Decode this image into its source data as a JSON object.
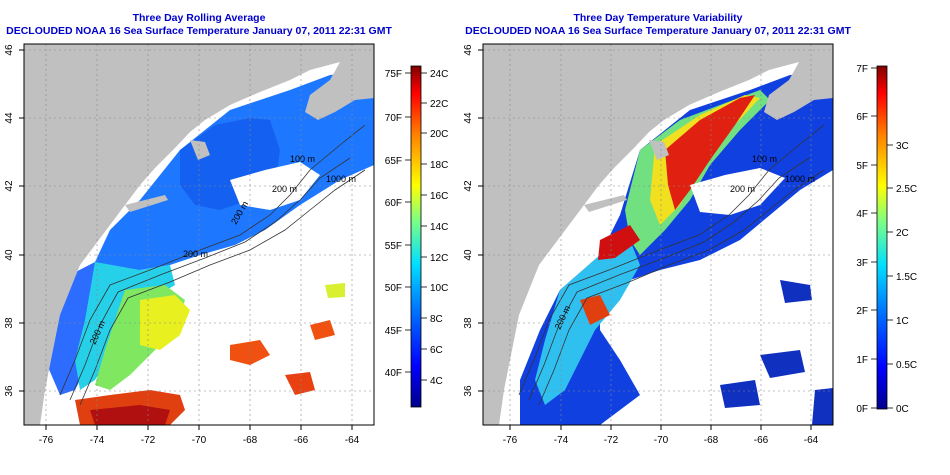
{
  "panels": [
    {
      "title_line1": "Three Day Rolling Average",
      "title_line2": "DECLOUDED NOAA 16 Sea Surface Temperature January 07, 2011 22:31 GMT",
      "colorbar_left_labels": [
        "75F",
        "70F",
        "65F",
        "60F",
        "55F",
        "50F",
        "45F",
        "40F"
      ],
      "colorbar_right_labels": [
        "24C",
        "22C",
        "20C",
        "18C",
        "16C",
        "14C",
        "12C",
        "10C",
        "8C",
        "6C",
        "4C"
      ],
      "contour_labels": [
        "100 m",
        "1000 m",
        "200 m",
        "200 m",
        "200 m",
        "200 m"
      ]
    },
    {
      "title_line1": "Three Day Temperature Variability",
      "title_line2": "DECLOUDED NOAA 16 Sea Surface Temperature January 07, 2011 22:31 GMT",
      "colorbar_left_labels": [
        "7F",
        "6F",
        "5F",
        "4F",
        "3F",
        "2F",
        "1F",
        "0F"
      ],
      "colorbar_right_labels": [
        "3C",
        "2.5C",
        "2C",
        "1.5C",
        "1C",
        "0.5C",
        "0C"
      ],
      "contour_labels": [
        "100 m",
        "1000 m",
        "200 m",
        "200 m"
      ]
    }
  ],
  "axes": {
    "x_ticks": [
      "-76",
      "-74",
      "-72",
      "-70",
      "-68",
      "-66",
      "-64"
    ],
    "y_ticks": [
      "46",
      "44",
      "42",
      "40",
      "38",
      "36"
    ]
  },
  "colors": {
    "title": "#0000cc",
    "land": "#c0c0c0",
    "grid": "#888888"
  }
}
